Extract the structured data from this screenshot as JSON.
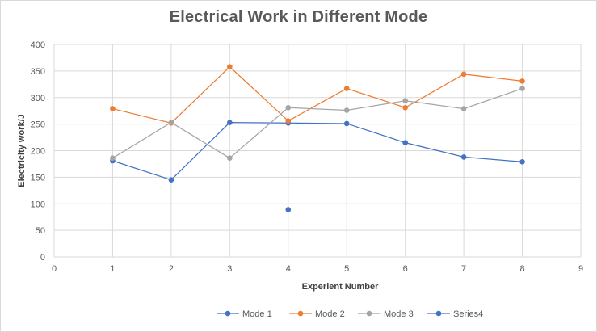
{
  "chart_data": {
    "type": "scatter",
    "title": "Electrical Work in Different Mode",
    "xlabel": "Experient Number",
    "ylabel": "Electricity work/J",
    "xlim": [
      0,
      9
    ],
    "ylim": [
      0,
      400
    ],
    "x_ticks": [
      0,
      1,
      2,
      3,
      4,
      5,
      6,
      7,
      8,
      9
    ],
    "y_ticks": [
      0,
      50,
      100,
      150,
      200,
      250,
      300,
      350,
      400
    ],
    "grid": true,
    "legend_position": "bottom",
    "series": [
      {
        "name": "Mode 1",
        "color": "#4472c4",
        "lines": true,
        "x": [
          1,
          2,
          3,
          4,
          5,
          6,
          7,
          8
        ],
        "y": [
          181,
          145,
          253,
          252,
          251,
          215,
          188,
          179
        ]
      },
      {
        "name": "Mode 2",
        "color": "#ed7d31",
        "lines": true,
        "x": [
          1,
          2,
          3,
          4,
          5,
          6,
          7,
          8
        ],
        "y": [
          279,
          252,
          358,
          256,
          317,
          281,
          344,
          331
        ]
      },
      {
        "name": "Mode 3",
        "color": "#a5a5a5",
        "lines": true,
        "x": [
          1,
          2,
          3,
          4,
          5,
          6,
          7,
          8
        ],
        "y": [
          186,
          253,
          186,
          281,
          276,
          294,
          279,
          317
        ]
      },
      {
        "name": "Series4",
        "color": "#4472c4",
        "lines": false,
        "x": [
          4
        ],
        "y": [
          89
        ]
      }
    ]
  }
}
